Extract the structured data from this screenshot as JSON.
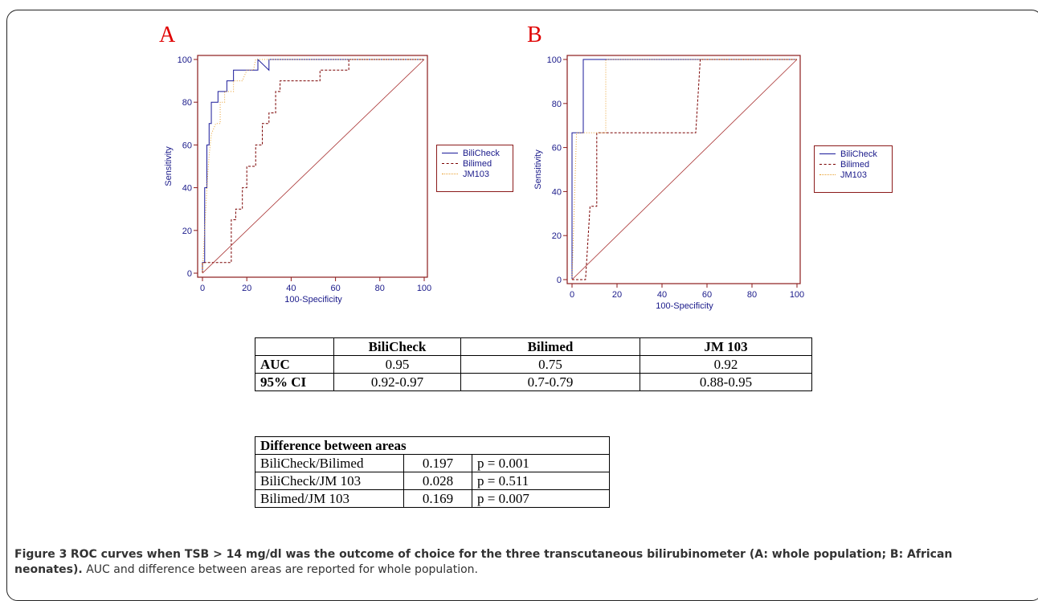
{
  "panels": [
    {
      "letter": "A"
    },
    {
      "letter": "B"
    }
  ],
  "chart_data": [
    {
      "type": "line",
      "panel": "A",
      "xlabel": "100-Specificity",
      "ylabel": "Sensitivity",
      "xlim": [
        0,
        100
      ],
      "ylim": [
        0,
        100
      ],
      "xticks": [
        0,
        20,
        40,
        60,
        80,
        100
      ],
      "yticks": [
        0,
        20,
        40,
        60,
        80,
        100
      ],
      "legend_position": "right",
      "series": [
        {
          "name": "BiliCheck",
          "color": "#1a1a9a",
          "dash": "solid",
          "points": [
            [
              0,
              0
            ],
            [
              0,
              5
            ],
            [
              1,
              5
            ],
            [
              1,
              10
            ],
            [
              1,
              40
            ],
            [
              2,
              40
            ],
            [
              2,
              60
            ],
            [
              3,
              60
            ],
            [
              3,
              70
            ],
            [
              4,
              70
            ],
            [
              4,
              80
            ],
            [
              7,
              80
            ],
            [
              7,
              85
            ],
            [
              9,
              85
            ],
            [
              11,
              85
            ],
            [
              11,
              90
            ],
            [
              14,
              90
            ],
            [
              14,
              95
            ],
            [
              25,
              95
            ],
            [
              25,
              100
            ],
            [
              30,
              95
            ],
            [
              30,
              100
            ],
            [
              100,
              100
            ]
          ]
        },
        {
          "name": "Bilimed",
          "color": "#7a0000",
          "dash": "3,2",
          "points": [
            [
              0,
              0
            ],
            [
              0,
              5
            ],
            [
              13,
              5
            ],
            [
              13,
              25
            ],
            [
              15,
              25
            ],
            [
              15,
              30
            ],
            [
              18,
              30
            ],
            [
              18,
              40
            ],
            [
              20,
              40
            ],
            [
              20,
              50
            ],
            [
              24,
              50
            ],
            [
              24,
              60
            ],
            [
              27,
              60
            ],
            [
              27,
              70
            ],
            [
              30,
              70
            ],
            [
              30,
              75
            ],
            [
              33,
              75
            ],
            [
              33,
              85
            ],
            [
              35,
              85
            ],
            [
              35,
              90
            ],
            [
              53,
              90
            ],
            [
              53,
              95
            ],
            [
              66,
              95
            ],
            [
              66,
              100
            ],
            [
              100,
              100
            ]
          ]
        },
        {
          "name": "JM103",
          "color": "#e8a030",
          "dash": "1,2",
          "points": [
            [
              0,
              0
            ],
            [
              1,
              20
            ],
            [
              2,
              40
            ],
            [
              3,
              55
            ],
            [
              4,
              65
            ],
            [
              6,
              70
            ],
            [
              8,
              70
            ],
            [
              8,
              80
            ],
            [
              10,
              80
            ],
            [
              10,
              85
            ],
            [
              14,
              85
            ],
            [
              14,
              90
            ],
            [
              18,
              90
            ],
            [
              20,
              95
            ],
            [
              23,
              95
            ],
            [
              24,
              100
            ],
            [
              100,
              100
            ]
          ]
        },
        {
          "name": "",
          "color": "#a83030",
          "dash": "solid",
          "reference": true,
          "points": [
            [
              0,
              0
            ],
            [
              100,
              100
            ]
          ]
        }
      ]
    },
    {
      "type": "line",
      "panel": "B",
      "xlabel": "100-Specificity",
      "ylabel": "Sensitivity",
      "xlim": [
        0,
        100
      ],
      "ylim": [
        0,
        100
      ],
      "xticks": [
        0,
        20,
        40,
        60,
        80,
        100
      ],
      "yticks": [
        0,
        20,
        40,
        60,
        80,
        100
      ],
      "legend_position": "right",
      "series": [
        {
          "name": "BiliCheck",
          "color": "#1a1a9a",
          "dash": "solid",
          "points": [
            [
              0,
              0
            ],
            [
              0,
              66.7
            ],
            [
              5,
              66.7
            ],
            [
              5,
              100
            ],
            [
              100,
              100
            ]
          ]
        },
        {
          "name": "Bilimed",
          "color": "#7a0000",
          "dash": "3,2",
          "points": [
            [
              0,
              0
            ],
            [
              6,
              0
            ],
            [
              8,
              33.3
            ],
            [
              11,
              33.3
            ],
            [
              11,
              66.7
            ],
            [
              55,
              66.7
            ],
            [
              57,
              100
            ],
            [
              100,
              100
            ]
          ]
        },
        {
          "name": "JM103",
          "color": "#e8a030",
          "dash": "1,2",
          "points": [
            [
              0,
              0
            ],
            [
              2,
              66.7
            ],
            [
              15,
              66.7
            ],
            [
              15,
              100
            ],
            [
              100,
              100
            ]
          ]
        },
        {
          "name": "",
          "color": "#a83030",
          "dash": "solid",
          "reference": true,
          "points": [
            [
              0,
              0
            ],
            [
              100,
              100
            ]
          ]
        }
      ]
    }
  ],
  "auc_table": {
    "headers": [
      "",
      "BiliCheck",
      "Bilimed",
      "JM 103"
    ],
    "rows": [
      [
        "AUC",
        "0.95",
        "0.75",
        "0.92"
      ],
      [
        "95% CI",
        "0.92-0.97",
        "0.7-0.79",
        "0.88-0.95"
      ]
    ]
  },
  "diff_table": {
    "title": "Difference between areas",
    "rows": [
      [
        "BiliCheck/Bilimed",
        "0.197",
        "p = 0.001"
      ],
      [
        "BiliCheck/JM 103",
        "0.028",
        "p = 0.511"
      ],
      [
        "Bilimed/JM 103",
        "0.169",
        "p = 0.007"
      ]
    ]
  },
  "caption": {
    "label": "Figure 3",
    "title": "ROC curves when TSB > 14 mg/dl was the outcome of choice for the three transcutaneous bilirubinometer (A: whole population; B: African neonates).",
    "text": "AUC and difference between areas are reported for whole population."
  }
}
